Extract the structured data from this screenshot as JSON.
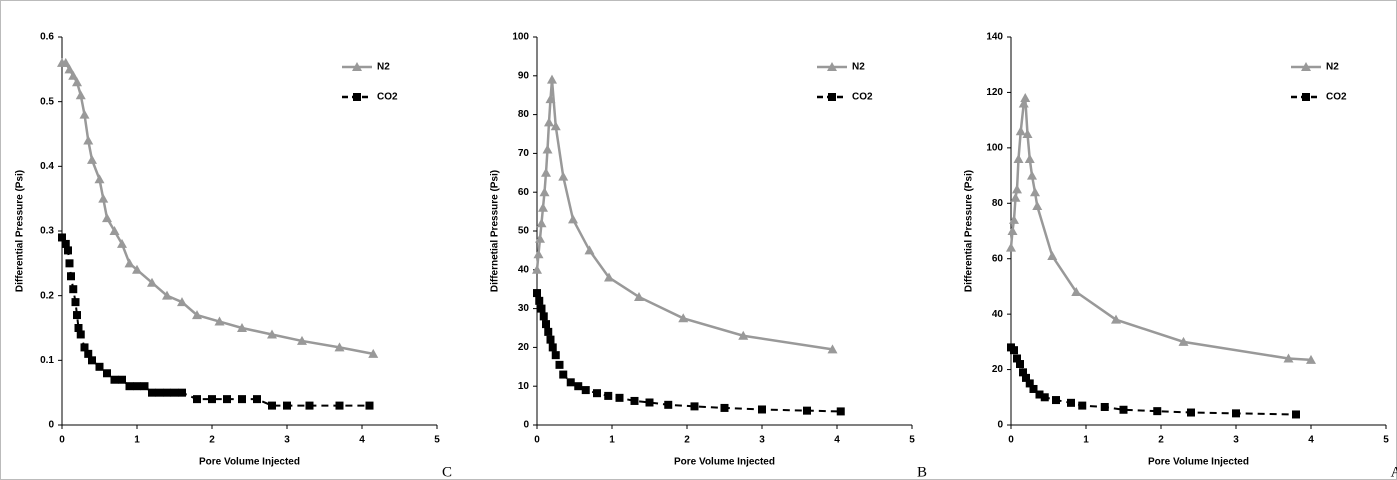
{
  "chart_data": [
    {
      "type": "line",
      "panel_label": "C",
      "x_label": "Pore Volume Injected",
      "y_label": "Differential Pressure (Psi)",
      "xlim": [
        0,
        5
      ],
      "xticks": [
        0,
        1,
        2,
        3,
        4,
        5
      ],
      "ylim": [
        0,
        0.6
      ],
      "yticks": [
        0,
        0.1,
        0.2,
        0.3,
        0.4,
        0.5,
        0.6
      ],
      "grid": false,
      "legend": "upper right",
      "series": [
        {
          "name": "N2",
          "color": "#999999",
          "marker": "triangle",
          "dashed": false,
          "x": [
            0,
            0.05,
            0.1,
            0.15,
            0.2,
            0.25,
            0.3,
            0.35,
            0.4,
            0.5,
            0.55,
            0.6,
            0.7,
            0.8,
            0.9,
            1.0,
            1.2,
            1.4,
            1.6,
            1.8,
            2.1,
            2.4,
            2.8,
            3.2,
            3.7,
            4.15
          ],
          "values": [
            0.56,
            0.56,
            0.55,
            0.54,
            0.53,
            0.51,
            0.48,
            0.44,
            0.41,
            0.38,
            0.35,
            0.32,
            0.3,
            0.28,
            0.25,
            0.24,
            0.22,
            0.2,
            0.19,
            0.17,
            0.16,
            0.15,
            0.14,
            0.13,
            0.12,
            0.11
          ]
        },
        {
          "name": "CO2",
          "color": "#000000",
          "marker": "square",
          "dashed": true,
          "x": [
            0,
            0.05,
            0.08,
            0.1,
            0.12,
            0.15,
            0.18,
            0.2,
            0.22,
            0.25,
            0.3,
            0.35,
            0.4,
            0.5,
            0.6,
            0.7,
            0.8,
            0.9,
            1.0,
            1.1,
            1.2,
            1.3,
            1.4,
            1.5,
            1.6,
            1.8,
            2.0,
            2.2,
            2.4,
            2.6,
            2.8,
            3.0,
            3.3,
            3.7,
            4.1
          ],
          "values": [
            0.29,
            0.28,
            0.27,
            0.25,
            0.23,
            0.21,
            0.19,
            0.17,
            0.15,
            0.14,
            0.12,
            0.11,
            0.1,
            0.09,
            0.08,
            0.07,
            0.07,
            0.06,
            0.06,
            0.06,
            0.05,
            0.05,
            0.05,
            0.05,
            0.05,
            0.04,
            0.04,
            0.04,
            0.04,
            0.04,
            0.03,
            0.03,
            0.03,
            0.03,
            0.03
          ]
        }
      ]
    },
    {
      "type": "line",
      "panel_label": "B",
      "x_label": "Pore Volume Injected",
      "y_label": "Differnetial Pressure (Psi)",
      "xlim": [
        0,
        5
      ],
      "xticks": [
        0,
        1,
        2,
        3,
        4,
        5
      ],
      "ylim": [
        0,
        100
      ],
      "yticks": [
        0,
        10,
        20,
        30,
        40,
        50,
        60,
        70,
        80,
        90,
        100
      ],
      "grid": false,
      "legend": "upper right",
      "series": [
        {
          "name": "N2",
          "color": "#999999",
          "marker": "triangle",
          "dashed": false,
          "x": [
            0,
            0.02,
            0.04,
            0.06,
            0.08,
            0.1,
            0.12,
            0.14,
            0.16,
            0.18,
            0.2,
            0.25,
            0.35,
            0.48,
            0.7,
            0.96,
            1.36,
            1.95,
            2.75,
            3.94
          ],
          "values": [
            40,
            44,
            48,
            52,
            56,
            60,
            65,
            71,
            78,
            84,
            89,
            77,
            64,
            53,
            45,
            38,
            33,
            27.5,
            23,
            19.5
          ]
        },
        {
          "name": "CO2",
          "color": "#000000",
          "marker": "square",
          "dashed": true,
          "x": [
            0,
            0.03,
            0.06,
            0.09,
            0.12,
            0.15,
            0.18,
            0.21,
            0.25,
            0.3,
            0.35,
            0.45,
            0.55,
            0.65,
            0.8,
            0.95,
            1.1,
            1.3,
            1.5,
            1.75,
            2.1,
            2.5,
            3.0,
            3.6,
            4.05
          ],
          "values": [
            34,
            32,
            30,
            28,
            26,
            24,
            22,
            20,
            18,
            15.5,
            13,
            11,
            10,
            9,
            8.2,
            7.5,
            7,
            6.2,
            5.8,
            5.2,
            4.8,
            4.4,
            4,
            3.7,
            3.5
          ]
        }
      ]
    },
    {
      "type": "line",
      "panel_label": "A",
      "x_label": "Pore Volume Injected",
      "y_label": "Differential Pressure (Psi)",
      "xlim": [
        0,
        5
      ],
      "xticks": [
        0,
        1,
        2,
        3,
        4,
        5
      ],
      "ylim": [
        0,
        140
      ],
      "yticks": [
        0,
        20,
        40,
        60,
        80,
        100,
        120,
        140
      ],
      "grid": false,
      "legend": "upper right",
      "series": [
        {
          "name": "N2",
          "color": "#999999",
          "marker": "triangle",
          "dashed": false,
          "x": [
            0,
            0.02,
            0.04,
            0.06,
            0.08,
            0.1,
            0.13,
            0.17,
            0.19,
            0.22,
            0.25,
            0.28,
            0.32,
            0.35,
            0.55,
            0.87,
            1.4,
            2.3,
            3.7,
            4.0
          ],
          "values": [
            64,
            70,
            74,
            82,
            85,
            96,
            106,
            116,
            118,
            105,
            96,
            90,
            84,
            79,
            61,
            48,
            38,
            30,
            24,
            23.5
          ]
        },
        {
          "name": "CO2",
          "color": "#000000",
          "marker": "square",
          "dashed": true,
          "x": [
            0,
            0.04,
            0.08,
            0.12,
            0.16,
            0.2,
            0.25,
            0.3,
            0.38,
            0.45,
            0.6,
            0.8,
            0.95,
            1.25,
            1.5,
            1.95,
            2.4,
            3.0,
            3.8
          ],
          "values": [
            28,
            27,
            24,
            22,
            19,
            17,
            15,
            13,
            11,
            10,
            9,
            8,
            7,
            6.5,
            5.5,
            5,
            4.5,
            4.2,
            3.8
          ]
        }
      ]
    }
  ]
}
